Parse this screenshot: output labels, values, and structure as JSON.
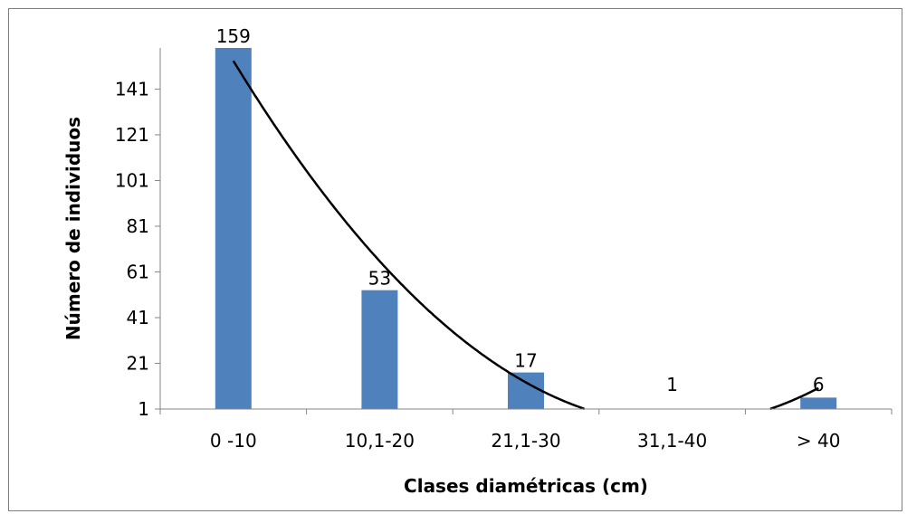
{
  "chart_data": {
    "type": "bar",
    "title": "",
    "xlabel": "Clases diamétricas (cm)",
    "ylabel": "Número de individuos",
    "categories": [
      "0 -10",
      "10,1-20",
      "21,1-30",
      "31,1-40",
      "> 40"
    ],
    "values": [
      159,
      53,
      17,
      1,
      6
    ],
    "data_labels": [
      "159",
      "53",
      "17",
      "1",
      "6"
    ],
    "y_ticks": [
      1,
      21,
      41,
      61,
      81,
      101,
      121,
      141
    ],
    "y_tick_labels": [
      "1",
      "21",
      "41",
      "61",
      "81",
      "101",
      "121",
      "141"
    ],
    "ylim": [
      1,
      159
    ],
    "grid": false,
    "legend": "none",
    "bar_color": "#4f81bd",
    "trendline": {
      "type": "polynomial",
      "order": 2,
      "color": "#000000",
      "points": [
        {
          "x": "0 -10",
          "y": 154
        },
        {
          "x": "10,1-20",
          "y": 57
        },
        {
          "x": "21,1-30",
          "y": 6
        },
        {
          "x": "> 40",
          "y": 10
        }
      ]
    }
  }
}
